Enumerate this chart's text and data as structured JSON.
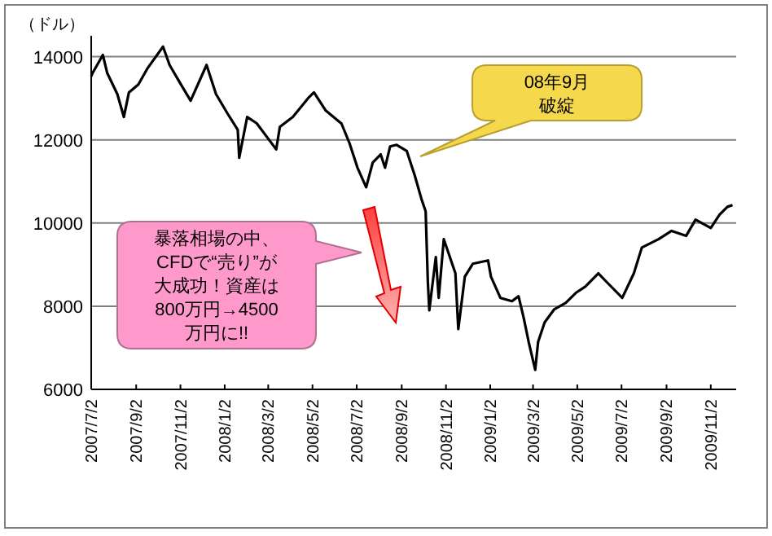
{
  "chart_data": {
    "type": "line",
    "ylabel": "（ドル）",
    "x": [
      "2007-07-02",
      "2007-07-04",
      "2007-07-18",
      "2007-07-24",
      "2007-08-07",
      "2007-08-16",
      "2007-08-23",
      "2007-09-05",
      "2007-09-18",
      "2007-10-09",
      "2007-10-18",
      "2007-10-31",
      "2007-11-16",
      "2007-12-08",
      "2007-12-21",
      "2008-01-06",
      "2008-01-20",
      "2008-01-22",
      "2008-02-02",
      "2008-02-15",
      "2008-03-13",
      "2008-03-18",
      "2008-04-05",
      "2008-04-27",
      "2008-05-04",
      "2008-05-20",
      "2008-06-11",
      "2008-06-22",
      "2008-07-03",
      "2008-07-15",
      "2008-07-24",
      "2008-08-04",
      "2008-08-10",
      "2008-08-17",
      "2008-08-26",
      "2008-09-09",
      "2008-09-20",
      "2008-09-29",
      "2008-10-05",
      "2008-10-08",
      "2008-10-10",
      "2008-10-19",
      "2008-10-23",
      "2008-10-30",
      "2008-11-15",
      "2008-11-19",
      "2008-11-28",
      "2008-12-09",
      "2008-12-30",
      "2009-01-03",
      "2009-01-16",
      "2009-02-01",
      "2009-02-10",
      "2009-02-17",
      "2009-02-24",
      "2009-03-05",
      "2009-03-09",
      "2009-03-18",
      "2009-03-31",
      "2009-04-16",
      "2009-04-30",
      "2009-05-13",
      "2009-05-31",
      "2009-06-11",
      "2009-07-03",
      "2009-07-19",
      "2009-07-30",
      "2009-08-22",
      "2009-09-09",
      "2009-09-29",
      "2009-10-12",
      "2009-11-02",
      "2009-11-14",
      "2009-11-25",
      "2009-12-02"
    ],
    "series": [
      {
        "color": "#000000",
        "values": [
          13530,
          13610,
          14040,
          13610,
          13100,
          12550,
          13140,
          13330,
          13730,
          14240,
          13800,
          13410,
          12940,
          13800,
          13100,
          12630,
          12240,
          11570,
          12550,
          12400,
          11770,
          12310,
          12550,
          13020,
          13140,
          12710,
          12390,
          11920,
          11330,
          10860,
          11450,
          11650,
          11330,
          11840,
          11880,
          11730,
          11140,
          10590,
          10280,
          8590,
          7900,
          9180,
          8200,
          9610,
          8790,
          7450,
          8710,
          9020,
          9100,
          8710,
          8200,
          8120,
          8240,
          7730,
          7140,
          6470,
          7140,
          7610,
          7920,
          8080,
          8320,
          8470,
          8790,
          8590,
          8200,
          8790,
          9410,
          9610,
          9810,
          9690,
          10080,
          9880,
          10200,
          10390,
          10430
        ]
      }
    ],
    "xlim": [
      "2007-07-02",
      "2009-12-07"
    ],
    "xticks": [
      {
        "value": "2007-07-02",
        "label": "2007/7/2"
      },
      {
        "value": "2007-09-02",
        "label": "2007/9/2"
      },
      {
        "value": "2007-11-02",
        "label": "2007/11/2"
      },
      {
        "value": "2008-01-02",
        "label": "2008/1/2"
      },
      {
        "value": "2008-03-02",
        "label": "2008/3/2"
      },
      {
        "value": "2008-05-02",
        "label": "2008/5/2"
      },
      {
        "value": "2008-07-02",
        "label": "2008/7/2"
      },
      {
        "value": "2008-09-02",
        "label": "2008/9/2"
      },
      {
        "value": "2008-11-02",
        "label": "2008/11/2"
      },
      {
        "value": "2009-01-02",
        "label": "2009/1/2"
      },
      {
        "value": "2009-03-02",
        "label": "2009/3/2"
      },
      {
        "value": "2009-05-02",
        "label": "2009/5/2"
      },
      {
        "value": "2009-07-02",
        "label": "2009/7/2"
      },
      {
        "value": "2009-09-02",
        "label": "2009/9/2"
      },
      {
        "value": "2009-11-02",
        "label": "2009/11/2"
      }
    ],
    "ylim": [
      6000,
      14500
    ],
    "yticks": [
      6000,
      8000,
      10000,
      12000,
      14000
    ],
    "grid": "y",
    "annotations": [
      "08年9月破綻",
      "暴落相場の中、CFDで“売り”が大成功！資産は800万円→4500万円に!!"
    ]
  }
}
